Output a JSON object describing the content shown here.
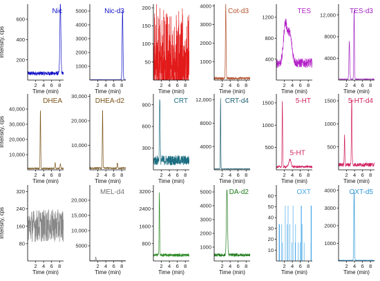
{
  "chart_data": [
    {
      "type": "line",
      "title": "Nic",
      "color": "#1010c8",
      "ylabel": "Intensity, cps",
      "xlabel": "Time (min)",
      "xlim": [
        0,
        9
      ],
      "ylim": [
        0,
        750
      ],
      "yticks": [
        200,
        400,
        600
      ],
      "ytick_labels": [
        "200",
        "400",
        "600"
      ],
      "xticks": [
        2,
        4,
        6,
        8
      ],
      "trace": {
        "baseline": 60,
        "noise": 40,
        "peaks": [
          {
            "x": 8.2,
            "y": 700,
            "w": 0.18
          }
        ]
      }
    },
    {
      "type": "line",
      "title": "Nic-d3",
      "color": "#1010c8",
      "ylabel": "",
      "xlabel": "Time (min)",
      "xlim": [
        0,
        9
      ],
      "ylim": [
        0,
        5500
      ],
      "yticks": [
        1000,
        2000,
        3000,
        4000,
        5000
      ],
      "ytick_labels": [
        "1000",
        "2000",
        "3000",
        "4000",
        "5000"
      ],
      "xticks": [
        2,
        4,
        6,
        8
      ],
      "trace": {
        "baseline": 20,
        "noise": 15,
        "peaks": [
          {
            "x": 8.2,
            "y": 5000,
            "w": 0.15
          }
        ]
      }
    },
    {
      "type": "line",
      "title": "",
      "color": "#e21a1a",
      "ylabel": "",
      "xlabel": "Time (min)",
      "xlim": [
        0,
        9
      ],
      "ylim": [
        0,
        210
      ],
      "yticks": [
        50,
        100,
        150,
        200
      ],
      "ytick_labels": [
        "50",
        "100",
        "150",
        "200"
      ],
      "xticks": [
        2,
        4,
        6,
        8
      ],
      "trace": {
        "baseline": 20,
        "noise": 110,
        "spiky": true,
        "peaks": []
      }
    },
    {
      "type": "line",
      "title": "Cot-d3",
      "color": "#b5502a",
      "ylabel": "",
      "xlabel": "Time (min)",
      "xlim": [
        0,
        9
      ],
      "ylim": [
        0,
        4100
      ],
      "yticks": [
        1000,
        2000,
        3000,
        4000
      ],
      "ytick_labels": [
        "1000",
        "2000",
        "3000",
        "4000"
      ],
      "xticks": [
        2,
        4,
        6,
        8
      ],
      "trace": {
        "baseline": 80,
        "noise": 120,
        "peaks": [
          {
            "x": 2.9,
            "y": 4000,
            "w": 0.12
          }
        ]
      }
    },
    {
      "type": "line",
      "title": "TES",
      "color": "#b31fc7",
      "ylabel": "",
      "xlabel": "Time (min)",
      "xlim": [
        0,
        9
      ],
      "ylim": [
        0,
        1450
      ],
      "yticks": [
        400,
        800,
        1200
      ],
      "ytick_labels": [
        "400",
        "800",
        "1200"
      ],
      "xticks": [
        2,
        4,
        6,
        8
      ],
      "trace": {
        "baseline": 300,
        "noise": 180,
        "peaks": [
          {
            "x": 2.2,
            "y": 680,
            "w": 0.6
          },
          {
            "x": 3.3,
            "y": 560,
            "w": 0.8
          }
        ]
      }
    },
    {
      "type": "line",
      "title": "TES-d3",
      "color": "#a020c0",
      "ylabel": "",
      "xlabel": "Time (min)",
      "xlim": [
        0,
        9
      ],
      "ylim": [
        0,
        14000
      ],
      "yticks": [
        4000,
        8000,
        12000
      ],
      "ytick_labels": [
        "4000",
        "8000",
        "12,000"
      ],
      "xticks": [
        2,
        4,
        6,
        8
      ],
      "trace": {
        "baseline": 150,
        "noise": 100,
        "peaks": [
          {
            "x": 2.7,
            "y": 7000,
            "w": 0.15
          },
          {
            "x": 3.9,
            "y": 12800,
            "w": 0.12
          }
        ]
      }
    },
    {
      "type": "line",
      "title": "DHEA",
      "color": "#7a5318",
      "ylabel": "Intensity, cps",
      "xlabel": "Time (min)",
      "xlim": [
        0,
        9
      ],
      "ylim": [
        0,
        50000
      ],
      "yticks": [
        10000,
        20000,
        30000,
        40000
      ],
      "ytick_labels": [
        "10,000",
        "20,000",
        "30,000",
        "40,000"
      ],
      "xticks": [
        2,
        4,
        6,
        8
      ],
      "trace": {
        "baseline": 800,
        "noise": 800,
        "peaks": [
          {
            "x": 3.2,
            "y": 39000,
            "w": 0.1
          },
          {
            "x": 6.9,
            "y": 3500,
            "w": 0.12
          },
          {
            "x": 8.2,
            "y": 3000,
            "w": 0.12
          }
        ]
      }
    },
    {
      "type": "line",
      "title": "DHEA-d2",
      "color": "#7a5318",
      "ylabel": "",
      "xlabel": "Time (min)",
      "xlim": [
        0,
        9
      ],
      "ylim": [
        0,
        31000
      ],
      "yticks": [
        10000,
        20000,
        30000
      ],
      "ytick_labels": [
        "10,000",
        "20,000",
        "30,000"
      ],
      "xticks": [
        2,
        4,
        6,
        8
      ],
      "trace": {
        "baseline": 600,
        "noise": 600,
        "peaks": [
          {
            "x": 3.2,
            "y": 24000,
            "w": 0.1
          },
          {
            "x": 6.9,
            "y": 2200,
            "w": 0.12
          }
        ]
      }
    },
    {
      "type": "line",
      "title": "CRT",
      "color": "#1c6e82",
      "ylabel": "",
      "xlabel": "Time (min)",
      "xlim": [
        0,
        9
      ],
      "ylim": [
        0,
        1050
      ],
      "yticks": [
        300,
        600,
        900
      ],
      "ytick_labels": [
        "300",
        "600",
        "900"
      ],
      "xticks": [
        2,
        4,
        6,
        8
      ],
      "trace": {
        "baseline": 110,
        "noise": 140,
        "peaks": [
          {
            "x": 1.6,
            "y": 900,
            "w": 0.12
          }
        ]
      }
    },
    {
      "type": "line",
      "title": "CRT-d4",
      "color": "#1c5e70",
      "ylabel": "",
      "xlabel": "Time (min)",
      "xlim": [
        0,
        9
      ],
      "ylim": [
        0,
        13000
      ],
      "yticks": [
        4000,
        8000,
        12000
      ],
      "ytick_labels": [
        "4000",
        "8000",
        "12,000"
      ],
      "xticks": [
        2,
        4,
        6,
        8
      ],
      "trace": {
        "baseline": 150,
        "noise": 80,
        "peaks": [
          {
            "x": 1.6,
            "y": 12200,
            "w": 0.08
          }
        ]
      }
    },
    {
      "type": "line",
      "title": "5-HT",
      "color": "#d02060",
      "ylabel": "",
      "xlabel": "Time (min)",
      "xlim": [
        0,
        9
      ],
      "ylim": [
        0,
        1700
      ],
      "yticks": [
        500,
        1000,
        1500
      ],
      "ytick_labels": [
        "500",
        "1000",
        "1500"
      ],
      "xticks": [
        2,
        4,
        6,
        8
      ],
      "trace": {
        "baseline": 60,
        "noise": 50,
        "peaks": [
          {
            "x": 1.5,
            "y": 1500,
            "w": 0.1
          },
          {
            "x": 3.4,
            "y": 160,
            "w": 0.4
          }
        ]
      }
    },
    {
      "type": "line",
      "title": "5-HT-d4",
      "color": "#d01c5c",
      "ylabel": "",
      "xlabel": "Time (min)",
      "xlim": [
        0,
        9
      ],
      "ylim": [
        0,
        1650
      ],
      "yticks": [
        500,
        1000,
        1500
      ],
      "ytick_labels": [
        "500",
        "1000",
        "1500"
      ],
      "xticks": [
        2,
        4,
        6,
        8
      ],
      "trace": {
        "baseline": 100,
        "noise": 80,
        "peaks": [
          {
            "x": 1.5,
            "y": 650,
            "w": 0.1
          },
          {
            "x": 3.3,
            "y": 1450,
            "w": 0.12
          }
        ]
      }
    },
    {
      "type": "line",
      "title": "",
      "color": "#888888",
      "ylabel": "Intensity, cps",
      "xlabel": "Time (min)",
      "xlim": [
        0,
        9
      ],
      "ylim": [
        0,
        350
      ],
      "yticks": [
        80,
        160,
        240,
        320
      ],
      "ytick_labels": [
        "80",
        "160",
        "240",
        "320"
      ],
      "xticks": [
        2,
        4,
        6,
        8
      ],
      "trace": {
        "baseline": 140,
        "noise": 150,
        "peaks": []
      }
    },
    {
      "type": "line",
      "title": "MEL-d4",
      "color": "#707070",
      "ylabel": "",
      "xlabel": "Time (min)",
      "xlim": [
        0,
        9
      ],
      "ylim": [
        0,
        25000
      ],
      "yticks": [
        5000,
        10000,
        15000,
        20000
      ],
      "ytick_labels": [
        "5000",
        "10,000",
        "15,000",
        "20,000"
      ],
      "xticks": [
        2,
        4,
        6,
        8
      ],
      "trace": {
        "baseline": 80,
        "noise": 60,
        "peaks": [
          {
            "x": 1.5,
            "y": 1200,
            "w": 0.1
          }
        ]
      }
    },
    {
      "type": "line",
      "title": "",
      "color": "#2a8a22",
      "ylabel": "",
      "xlabel": "Time (min)",
      "xlim": [
        0,
        9
      ],
      "ylim": [
        0,
        3500
      ],
      "yticks": [
        800,
        1600,
        2400,
        3200
      ],
      "ytick_labels": [
        "800",
        "1600",
        "2400",
        "3200"
      ],
      "xticks": [
        2,
        4,
        6,
        8
      ],
      "trace": {
        "baseline": 250,
        "noise": 140,
        "peaks": [
          {
            "x": 1.5,
            "y": 3000,
            "w": 0.1
          }
        ]
      }
    },
    {
      "type": "line",
      "title": "DA-d2",
      "color": "#1e7a1a",
      "ylabel": "",
      "xlabel": "Time (min)",
      "xlim": [
        0,
        9
      ],
      "ylim": [
        0,
        5500
      ],
      "yticks": [
        1000,
        2000,
        3000,
        4000,
        5000
      ],
      "ytick_labels": [
        "1000",
        "2000",
        "3000",
        "4000",
        "5000"
      ],
      "xticks": [
        2,
        4,
        6,
        8
      ],
      "trace": {
        "baseline": 400,
        "noise": 220,
        "peaks": [
          {
            "x": 3.2,
            "y": 4800,
            "w": 0.2
          }
        ]
      }
    },
    {
      "type": "line",
      "title": "OXT",
      "color": "#48a8e8",
      "ylabel": "",
      "xlabel": "Time (min)",
      "xlim": [
        0,
        9
      ],
      "ylim": [
        0,
        70
      ],
      "yticks": [
        10,
        20,
        30,
        40,
        50,
        60
      ],
      "ytick_labels": [
        "10",
        "20",
        "30",
        "40",
        "50",
        "60"
      ],
      "xticks": [
        2,
        4,
        6,
        8
      ],
      "trace": {
        "baseline": 0,
        "noise": 0,
        "discrete": true,
        "levels": [
          17,
          34,
          51
        ],
        "peaks": []
      }
    },
    {
      "type": "line",
      "title": "OXT-d5",
      "color": "#2c96d8",
      "ylabel": "",
      "xlabel": "Time (min)",
      "xlim": [
        0,
        9
      ],
      "ylim": [
        0,
        4300
      ],
      "yticks": [
        1000,
        2000,
        3000,
        4000
      ],
      "ytick_labels": [
        "1000",
        "2000",
        "3000",
        "4000"
      ],
      "xticks": [
        2,
        4,
        6,
        8
      ],
      "trace": {
        "baseline": 30,
        "noise": 25,
        "peaks": [
          {
            "x": 3.9,
            "y": 4000,
            "w": 0.12
          }
        ]
      }
    }
  ],
  "annotations": [
    {
      "panel": 10,
      "label": "5-HT",
      "x": 3.4,
      "y": 330
    }
  ]
}
